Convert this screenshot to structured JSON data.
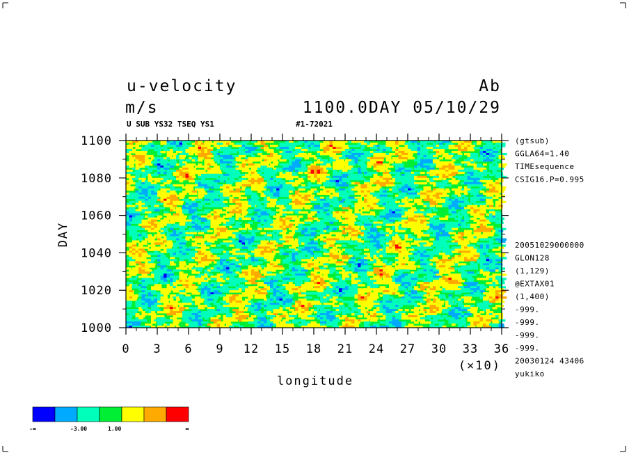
{
  "title": {
    "variable": "u-velocity",
    "unit": "m/s",
    "tag": "Ab",
    "time": "1100.0DAY 05/10/29",
    "sub_left": "U SUB YS32 TSEQ YS1",
    "sub_right": "#1-72021"
  },
  "sidebar": {
    "top_lines": [
      "(gtsub)",
      "GGLA64=1.40",
      "TIMEsequence",
      "CSIG16.P=0.995"
    ],
    "bottom_lines": [
      "20051029000000",
      "GLON128",
      "(1,129)",
      "@EXTAX01",
      "(1,400)",
      "-999.",
      "-999.",
      "-999.",
      "-999.",
      "20030124  43406",
      "yukiko"
    ]
  },
  "colorbar": {
    "colors": [
      "#0000ff",
      "#00aaff",
      "#00ffbb",
      "#00ee33",
      "#ffff00",
      "#ffaa00",
      "#ff0000"
    ],
    "labels": [
      "-∞",
      "-3.00",
      "1.00",
      "∞"
    ]
  },
  "chart_data": {
    "type": "heatmap",
    "title": "u-velocity",
    "xlabel": "longitude",
    "ylabel": "DAY",
    "x_scale_label": "(×10)",
    "xlim": [
      0,
      36
    ],
    "ylim": [
      1000,
      1100
    ],
    "x_ticks": [
      "0",
      "3",
      "6",
      "9",
      "12",
      "15",
      "18",
      "21",
      "24",
      "27",
      "30",
      "33",
      "36"
    ],
    "y_ticks": [
      "1000",
      "1020",
      "1040",
      "1060",
      "1080",
      "1100"
    ],
    "contour_levels": [
      -3.0,
      1.0
    ],
    "grid": false
  }
}
